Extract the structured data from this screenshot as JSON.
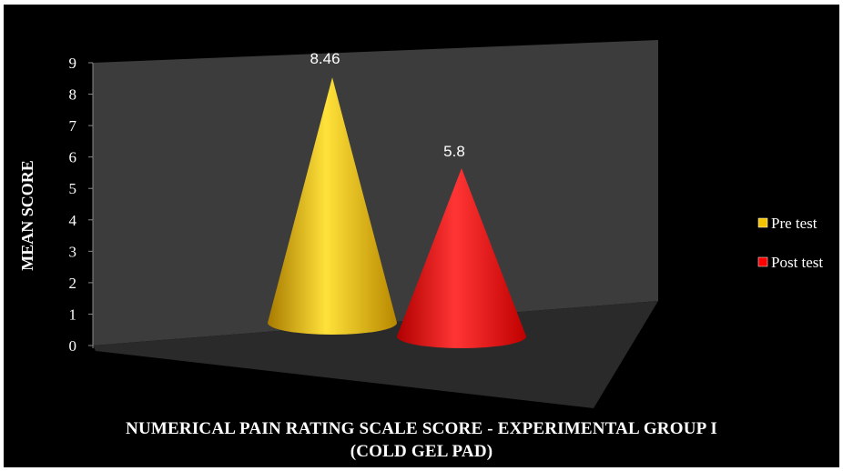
{
  "chart_data": {
    "type": "bar",
    "style": "3d-cone",
    "categories": [
      ""
    ],
    "series": [
      {
        "name": "Pre test",
        "values": [
          8.46
        ],
        "color": "#f5c400"
      },
      {
        "name": "Post test",
        "values": [
          5.8
        ],
        "color": "#ff0000"
      }
    ],
    "data_labels": [
      "8.46",
      "5.8"
    ],
    "ylabel": "MEAN SCORE",
    "xlabel_line1": "NUMERICAL PAIN RATING SCALE SCORE - EXPERIMENTAL GROUP I",
    "xlabel_line2": "(COLD GEL PAD)",
    "ylim": [
      0,
      9
    ],
    "yticks": [
      0,
      1,
      2,
      3,
      4,
      5,
      6,
      7,
      8,
      9
    ],
    "legend_position": "right",
    "background": "#000000",
    "wall_color": "#3c3c3c",
    "floor_color": "#2b2b2b"
  }
}
